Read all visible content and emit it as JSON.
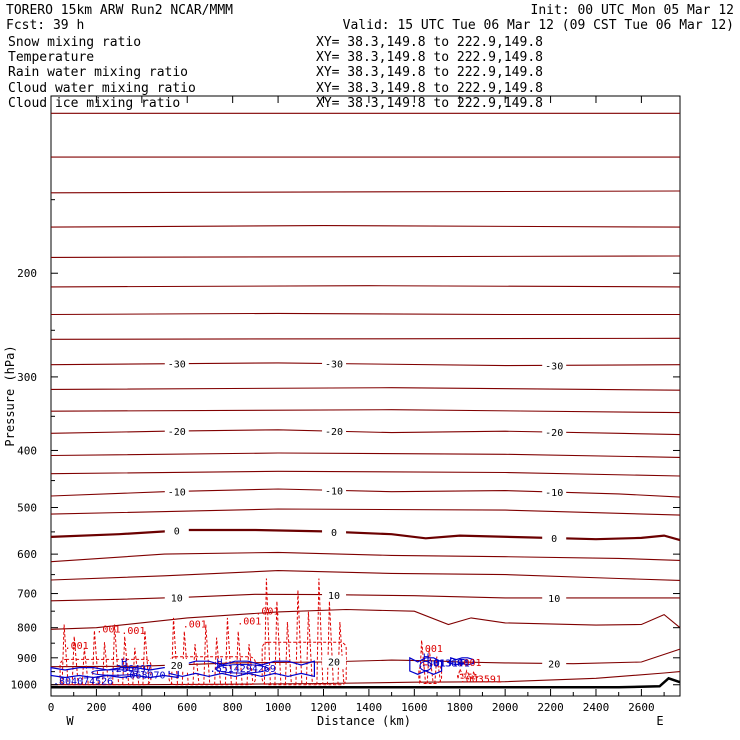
{
  "header": {
    "model": "TORERO  15km ARW   Run2    NCAR/MMM",
    "init": "Init: 00 UTC Mon 05 Mar 12",
    "fcst": "Fcst:   39 h",
    "valid": "Valid: 15 UTC Tue 06 Mar 12 (09 CST Tue 06 Mar 12)"
  },
  "legend": [
    {
      "name": "Snow mixing ratio",
      "xy": "XY=  38.3,149.8 to 222.9,149.8",
      "color": "#000000"
    },
    {
      "name": "Temperature",
      "xy": "XY=  38.3,149.8 to 222.9,149.8",
      "color": "#cc0000"
    },
    {
      "name": "Rain water mixing ratio",
      "xy": "XY=  38.3,149.8 to 222.9,149.8",
      "color": "#cc0000"
    },
    {
      "name": "Cloud water mixing ratio",
      "xy": "XY=  38.3,149.8 to 222.9,149.8",
      "color": "#0000cc"
    },
    {
      "name": "Cloud ice mixing ratio",
      "xy": "XY=  38.3,149.8 to 222.9,149.8",
      "color": "#000000"
    }
  ],
  "axes": {
    "xlabel": "Distance (km)",
    "ylabel": "Pressure (hPa)",
    "left_end": "W",
    "right_end": "E",
    "x_ticks": [
      "0",
      "200",
      "400",
      "600",
      "800",
      "1000",
      "1200",
      "1400",
      "1600",
      "1800",
      "2000",
      "2200",
      "2400",
      "2600"
    ],
    "y_ticks": [
      "200",
      "300",
      "400",
      "500",
      "600",
      "700",
      "800",
      "900",
      "1000"
    ]
  },
  "chart_data": {
    "type": "line",
    "title": "Snow mixing ratio / Temperature / Rain water mixing ratio / Cloud water mixing ratio / Cloud ice mixing ratio",
    "xlabel": "Distance (km)",
    "ylabel": "Pressure (hPa)",
    "xlim": [
      0,
      2770
    ],
    "ylim": [
      1045,
      100
    ],
    "y_scale": "log",
    "grid": false,
    "temperature_color": "#800000",
    "freezing_level_color": "#6b0000",
    "temperature_isotherms": [
      {
        "label": "",
        "x": [
          0,
          2770
        ],
        "y": [
          107,
          107
        ]
      },
      {
        "label": "",
        "x": [
          0,
          2770
        ],
        "y": [
          127,
          127
        ]
      },
      {
        "label": "",
        "x": [
          0,
          2770
        ],
        "y": [
          146,
          145
        ]
      },
      {
        "label": "",
        "x": [
          0,
          1200,
          2770
        ],
        "y": [
          167,
          166,
          167
        ]
      },
      {
        "label": "",
        "x": [
          0,
          2770
        ],
        "y": [
          188,
          187
        ]
      },
      {
        "label": "",
        "x": [
          0,
          1400,
          2770
        ],
        "y": [
          211,
          210,
          211
        ]
      },
      {
        "label": "",
        "x": [
          0,
          1000,
          2000,
          2770
        ],
        "y": [
          235,
          234,
          235,
          235
        ]
      },
      {
        "label": "",
        "x": [
          0,
          2770
        ],
        "y": [
          259,
          258
        ]
      },
      {
        "label": "-30",
        "x": [
          0,
          1000,
          2000,
          2770
        ],
        "y": [
          286,
          284,
          287,
          286
        ]
      },
      {
        "label": "",
        "x": [
          0,
          1500,
          2770
        ],
        "y": [
          315,
          313,
          316
        ]
      },
      {
        "label": "",
        "x": [
          0,
          1500,
          2770
        ],
        "y": [
          343,
          341,
          345
        ]
      },
      {
        "label": "-20",
        "x": [
          0,
          500,
          1000,
          1500,
          2000,
          2500,
          2770
        ],
        "y": [
          374,
          371,
          369,
          373,
          371,
          374,
          376
        ]
      },
      {
        "label": "",
        "x": [
          0,
          1000,
          2000,
          2770
        ],
        "y": [
          408,
          404,
          406,
          411
        ]
      },
      {
        "label": "",
        "x": [
          0,
          1000,
          2000,
          2770
        ],
        "y": [
          438,
          434,
          436,
          442
        ]
      },
      {
        "label": "-10",
        "x": [
          0,
          500,
          1000,
          1500,
          2000,
          2500,
          2770
        ],
        "y": [
          478,
          470,
          465,
          470,
          468,
          474,
          480
        ]
      },
      {
        "label": "",
        "x": [
          0,
          1000,
          2000,
          2770
        ],
        "y": [
          513,
          503,
          505,
          515
        ]
      },
      {
        "label": "0",
        "x": [
          0,
          300,
          600,
          900,
          1200,
          1500,
          1650,
          1800,
          2100,
          2400,
          2600,
          2700,
          2770
        ],
        "y": [
          561,
          555,
          546,
          546,
          549,
          555,
          564,
          558,
          562,
          566,
          563,
          558,
          568
        ]
      },
      {
        "label": "",
        "x": [
          0,
          500,
          1000,
          1500,
          2000,
          2500,
          2770
        ],
        "y": [
          618,
          600,
          596,
          603,
          606,
          610,
          615
        ]
      },
      {
        "label": "",
        "x": [
          0,
          500,
          1000,
          1500,
          2000,
          2500,
          2770
        ],
        "y": [
          664,
          653,
          640,
          647,
          650,
          660,
          665
        ]
      },
      {
        "label": "10",
        "x": [
          0,
          300,
          600,
          900,
          1200,
          1600,
          2000,
          2400,
          2770
        ],
        "y": [
          720,
          716,
          710,
          702,
          703,
          706,
          712,
          712,
          712
        ]
      },
      {
        "label": "",
        "x": [
          0,
          200,
          600,
          1000,
          1300,
          1600,
          1750,
          1850,
          2000,
          2400,
          2600,
          2700,
          2770
        ],
        "y": [
          805,
          800,
          770,
          752,
          745,
          750,
          790,
          770,
          785,
          792,
          790,
          760,
          800
        ]
      },
      {
        "label": "20",
        "x": [
          0,
          400,
          800,
          1200,
          1500,
          1700,
          1800,
          2000,
          2300,
          2600,
          2770
        ],
        "y": [
          932,
          930,
          918,
          915,
          908,
          911,
          915,
          918,
          921,
          915,
          870
        ]
      },
      {
        "label": "",
        "x": [
          0,
          400,
          800,
          1200,
          1600,
          2000,
          2400,
          2700,
          2770
        ],
        "y": [
          1000,
          1000,
          998,
          995,
          990,
          988,
          975,
          955,
          950
        ]
      }
    ],
    "rain_water_mixing_ratio": {
      "color": "#dd0000",
      "labels": [
        ".001",
        ".001",
        ".001",
        ".001",
        ".001",
        ".001",
        ".001",
        ".001",
        ".003591"
      ],
      "regions": [
        {
          "x_start": 40,
          "x_end": 440,
          "top_hPa": 790,
          "base_hPa": 1000
        },
        {
          "x_start": 520,
          "x_end": 900,
          "top_hPa": 770,
          "base_hPa": 1000
        },
        {
          "x_start": 930,
          "x_end": 1300,
          "top_hPa": 660,
          "base_hPa": 1000
        },
        {
          "x_start": 1620,
          "x_end": 1720,
          "top_hPa": 840,
          "base_hPa": 995
        },
        {
          "x_start": 1790,
          "x_end": 1880,
          "top_hPa": 940,
          "base_hPa": 975
        }
      ]
    },
    "cloud_water_mixing_ratio": {
      "color": "#0000cc",
      "labels": [
        "H",
        ".286497",
        ".068070",
        ".804074526",
        "H",
        ".6514294269",
        "H",
        ".001360",
        ".013141"
      ],
      "regions": [
        {
          "x_start": 0,
          "x_end": 560,
          "top_hPa": 935,
          "base_hPa": 972
        },
        {
          "x_start": 520,
          "x_end": 1160,
          "top_hPa": 912,
          "base_hPa": 968
        },
        {
          "x_start": 1580,
          "x_end": 1720,
          "top_hPa": 900,
          "base_hPa": 960
        },
        {
          "x_start": 1760,
          "x_end": 1860,
          "top_hPa": 900,
          "base_hPa": 925
        }
      ]
    },
    "terrain": {
      "color": "#000000",
      "x": [
        0,
        2500,
        2680,
        2720,
        2770
      ],
      "y": [
        1010,
        1010,
        1006,
        975,
        990
      ]
    }
  }
}
